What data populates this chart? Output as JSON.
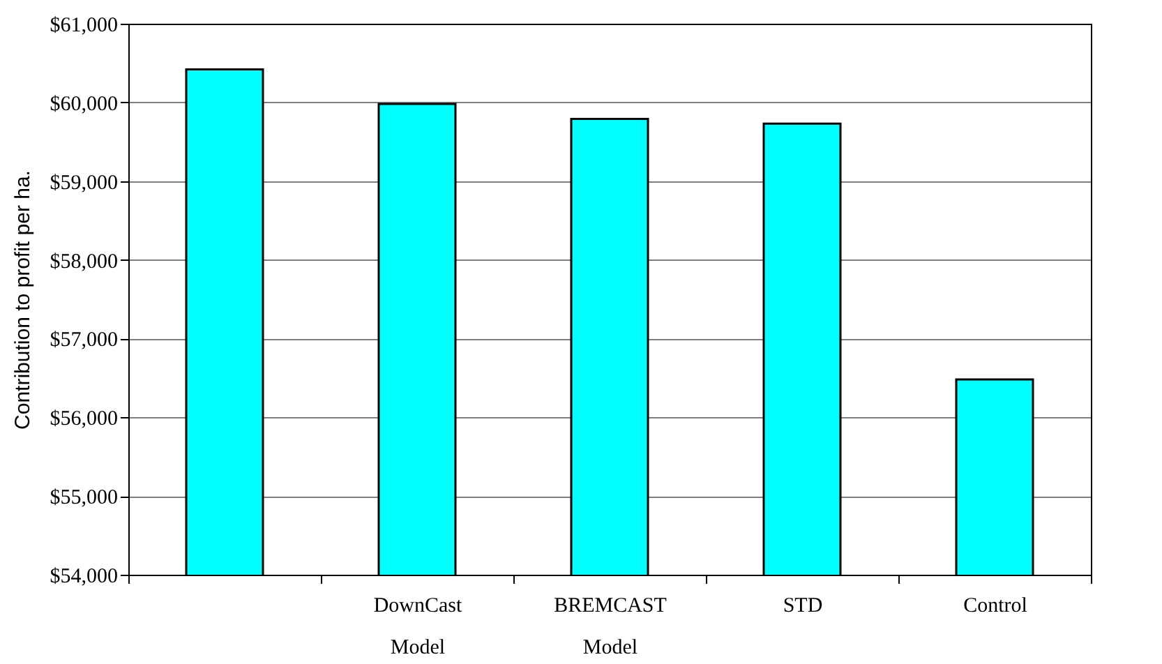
{
  "chart_data": {
    "type": "bar",
    "ylabel": "Contribution to profit per ha.",
    "categories": [
      null,
      "DownCast Model",
      "BREMCAST Model",
      "STD",
      "Control"
    ],
    "values": [
      60420,
      59980,
      59790,
      59730,
      56480
    ],
    "color": "#00ffff",
    "ylim": [
      54000,
      61000
    ],
    "yticks": [
      {
        "value": 54000,
        "label": "$54,000"
      },
      {
        "value": 55000,
        "label": "$55,000"
      },
      {
        "value": 56000,
        "label": "$56,000"
      },
      {
        "value": 57000,
        "label": "$57,000"
      },
      {
        "value": 58000,
        "label": "$58,000"
      },
      {
        "value": 59000,
        "label": "$59,000"
      },
      {
        "value": 60000,
        "label": "$60,000"
      },
      {
        "value": 61000,
        "label": "$61,000"
      }
    ],
    "grid": "y"
  }
}
